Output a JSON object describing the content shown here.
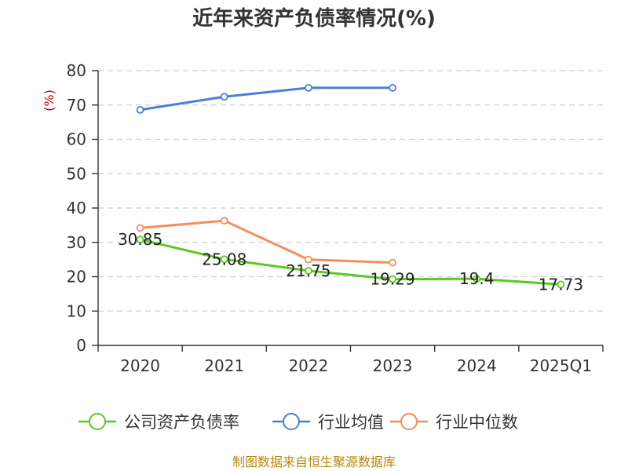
{
  "chart_data": {
    "type": "line",
    "title": "近年来资产负债率情况(%)",
    "ylabel": "(%)",
    "xlabel": "",
    "categories": [
      "2020",
      "2021",
      "2022",
      "2023",
      "2024",
      "2025Q1"
    ],
    "ylim": [
      0,
      80
    ],
    "yticks": [
      0,
      10,
      20,
      30,
      40,
      50,
      60,
      70,
      80
    ],
    "grid": true,
    "legend_position": "bottom",
    "series": [
      {
        "name": "公司资产负债率",
        "color": "#5cc91e",
        "values": [
          30.85,
          25.08,
          21.75,
          19.29,
          19.4,
          17.73
        ],
        "labels": [
          "30.85",
          "25.08",
          "21.75",
          "19.29",
          "19.4",
          "17.73"
        ]
      },
      {
        "name": "行业均值",
        "color": "#4a7fd8",
        "values": [
          68.6,
          72.4,
          75.0,
          75.0,
          null,
          null
        ]
      },
      {
        "name": "行业中位数",
        "color": "#f58d5a",
        "values": [
          34.2,
          36.3,
          25.0,
          24.1,
          null,
          null
        ]
      }
    ]
  },
  "source_text": "制图数据来自恒生聚源数据库"
}
